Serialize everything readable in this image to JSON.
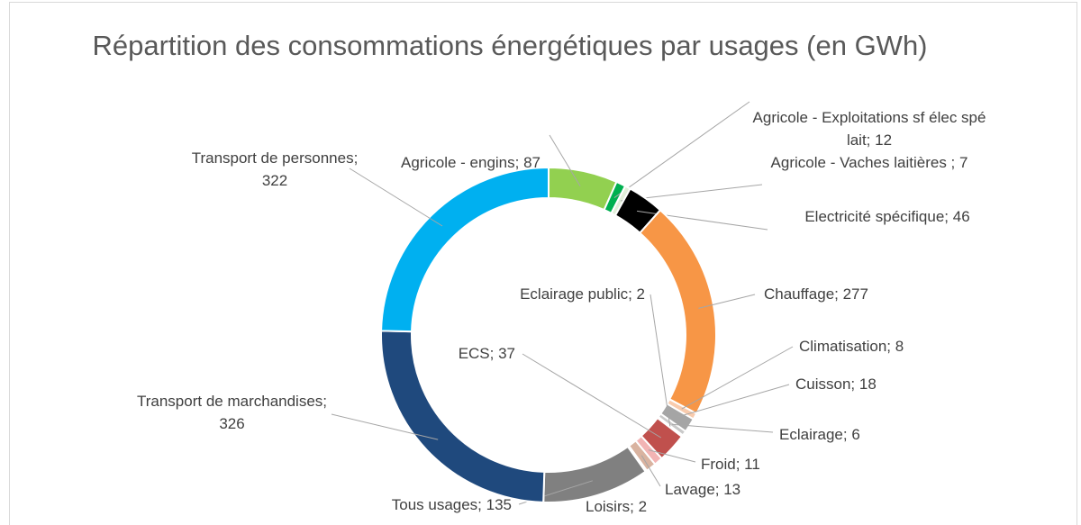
{
  "chart_data": {
    "type": "pie",
    "donut": true,
    "title": "Répartition des consommations énergétiques par usages (en GWh)",
    "values": [
      87,
      12,
      7,
      46,
      277,
      8,
      18,
      6,
      2,
      37,
      11,
      13,
      2,
      135,
      326,
      322
    ],
    "value_labels": [
      "Agricole - engins; 87",
      "Agricole - Exploitations sf élec spé lait; 12",
      "Agricole - Vaches laitières ; 7",
      "Electricité spécifique; 46",
      "Chauffage; 277",
      "Climatisation; 8",
      "Cuisson; 18",
      "Eclairage; 6",
      "Eclairage public; 2",
      "ECS; 37",
      "Froid; 11",
      "Lavage; 13",
      "Loisirs; 2",
      "Tous usages; 135",
      "Transport de marchandises; 326",
      "Transport de personnes; 322"
    ],
    "colors": [
      "#92d050",
      "#00b050",
      "#e2efda",
      "#000000",
      "#f79646",
      "#f8cbad",
      "#a5a5a5",
      "#c9c9c9",
      "#d9d9d9",
      "#c0504d",
      "#f2b4b4",
      "#d9b3a0",
      "#948a54",
      "#808080",
      "#1f497d",
      "#00b0f0"
    ]
  }
}
